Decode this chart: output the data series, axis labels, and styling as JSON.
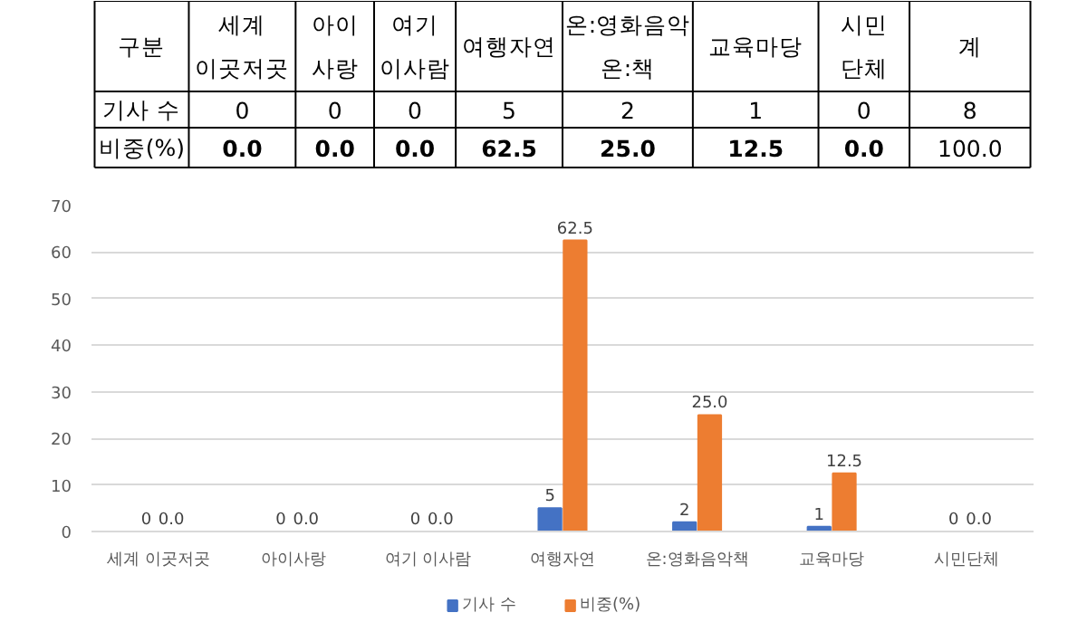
{
  "chart_data": {
    "type": "bar",
    "categories": [
      "세계 이곳저곳",
      "아이사랑",
      "여기 이사람",
      "여행자연",
      "온:영화음악책",
      "교육마당",
      "시민단체"
    ],
    "series": [
      {
        "name": "기사 수",
        "color": "#4472c4",
        "values": [
          0,
          0,
          0,
          5,
          2,
          1,
          0
        ],
        "value_labels": [
          "0",
          "0",
          "0",
          "5",
          "2",
          "1",
          "0"
        ]
      },
      {
        "name": "비중(%)",
        "color": "#ed7d31",
        "values": [
          0.0,
          0.0,
          0.0,
          62.5,
          25.0,
          12.5,
          0.0
        ],
        "value_labels": [
          "0.0",
          "0.0",
          "0.0",
          "62.5",
          "25.0",
          "12.5",
          "0.0"
        ]
      }
    ],
    "ylim": [
      0,
      70
    ],
    "yticks": [
      0,
      10,
      20,
      30,
      40,
      50,
      60,
      70
    ],
    "grid": "y",
    "legend": "bottom",
    "annotations": [
      "구분",
      "세계 이곳저곳",
      "아이 사랑",
      "여기 이사람",
      "여행자연",
      "온:영화음악 온:책",
      "교육마당",
      "시민 단체",
      "계",
      "8",
      "100.0"
    ]
  }
}
